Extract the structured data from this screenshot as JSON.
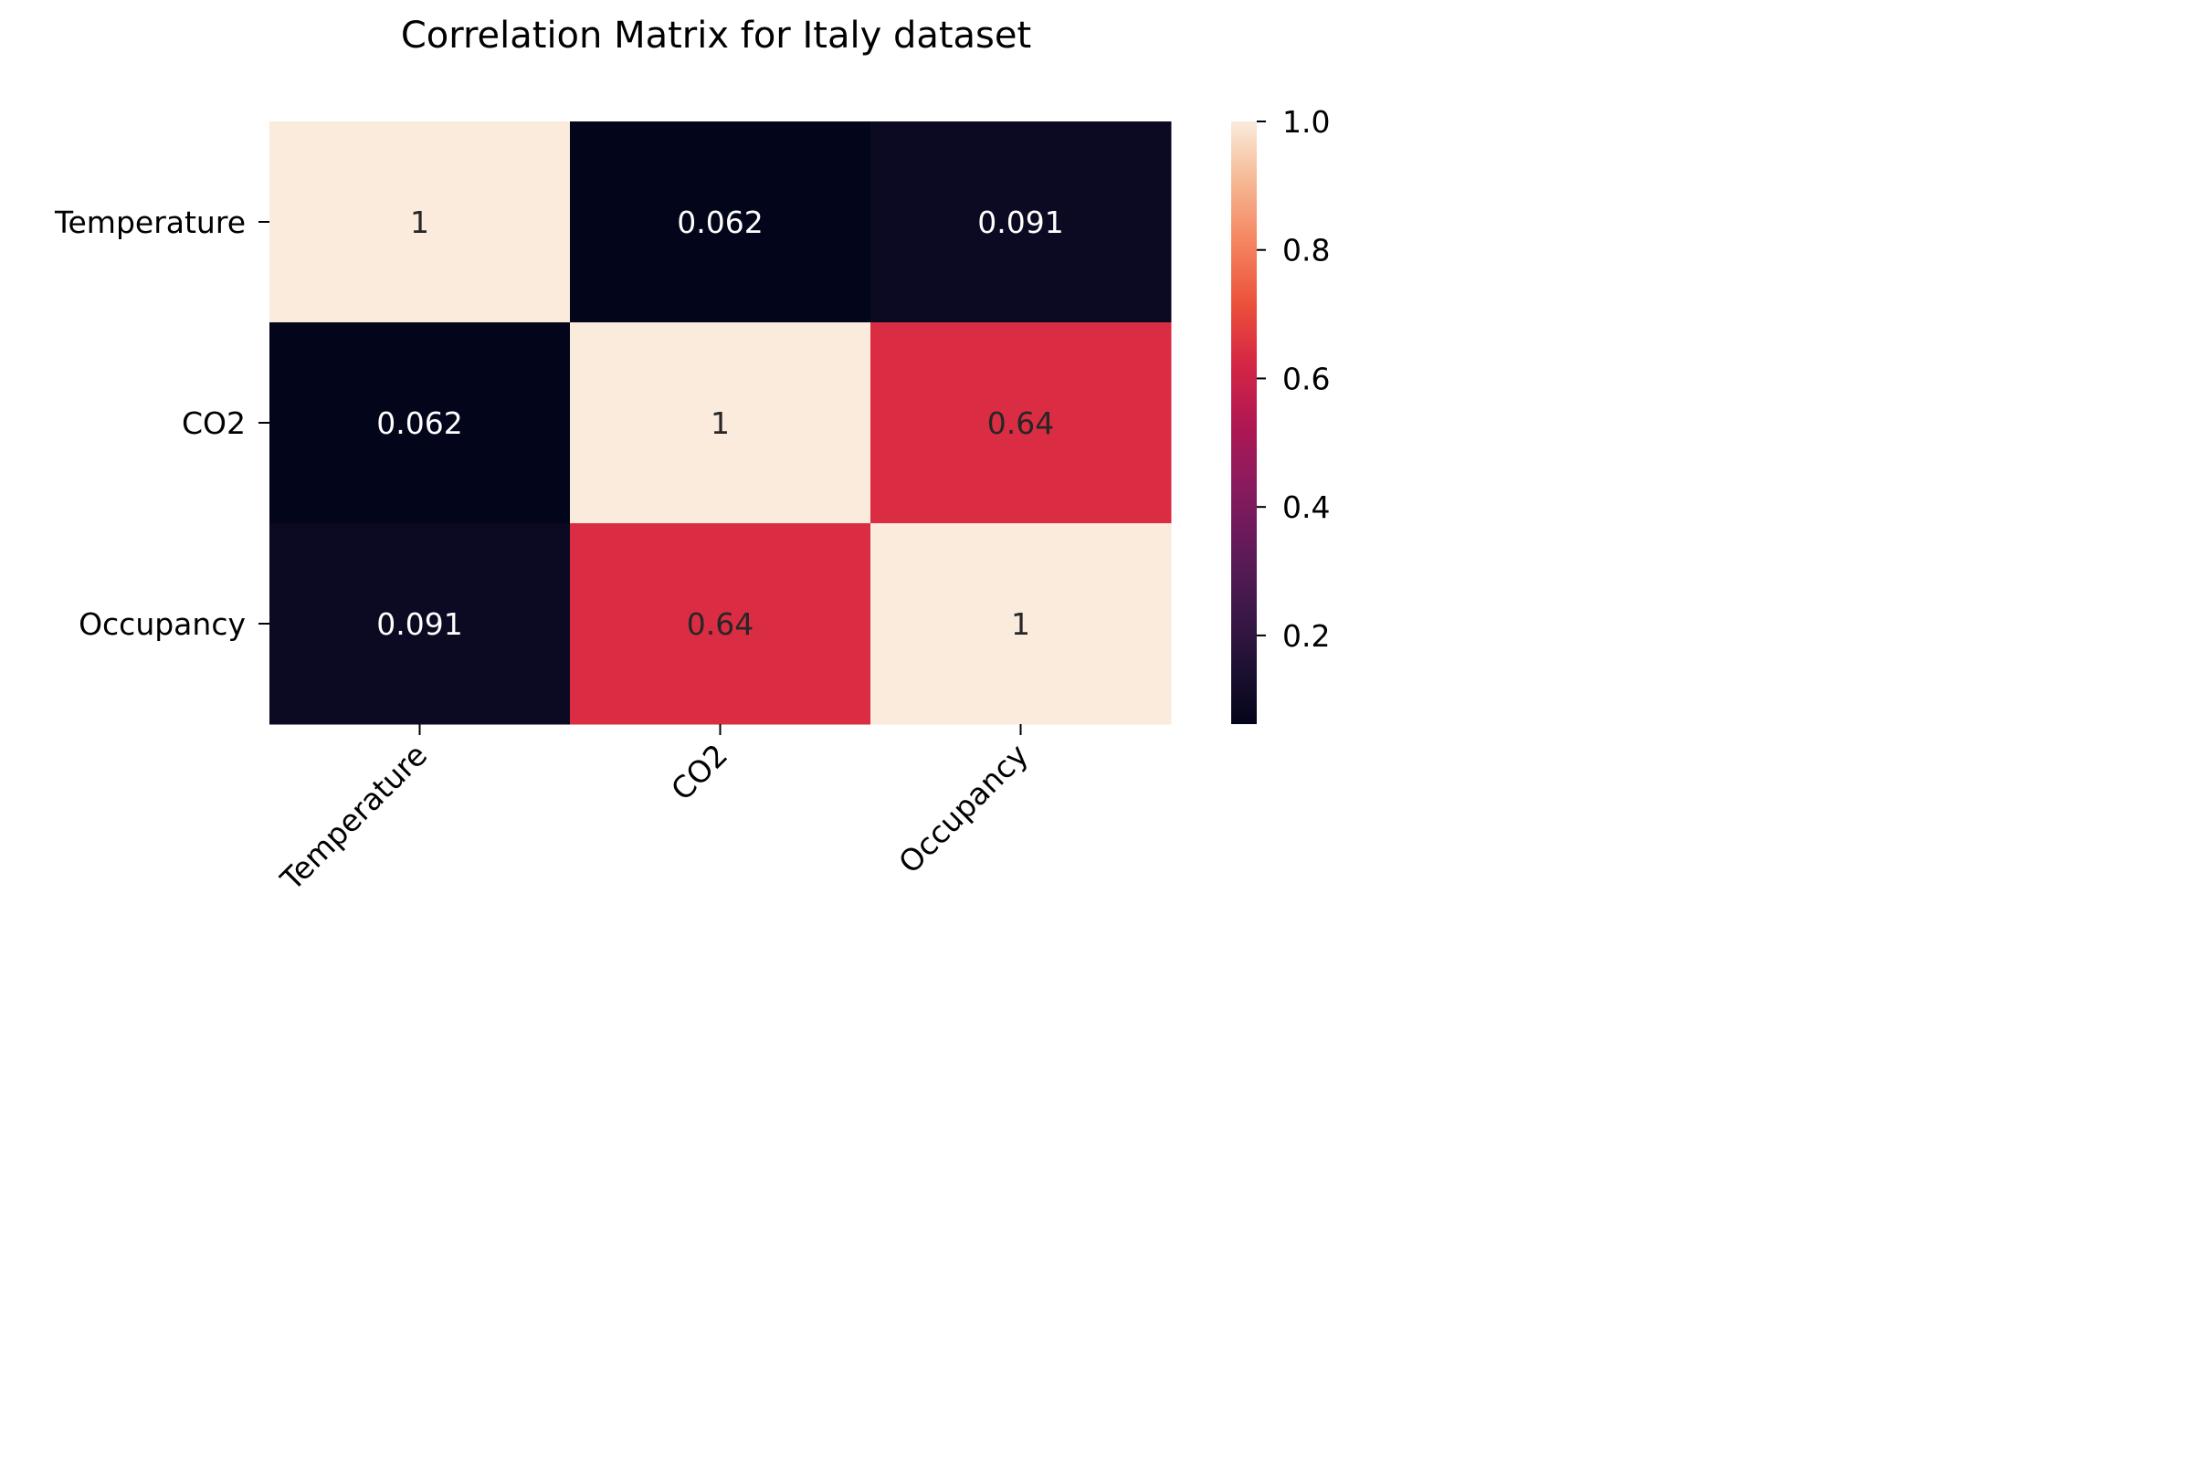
{
  "chart_data": {
    "type": "heatmap",
    "title": "Correlation Matrix for Italy dataset",
    "x_categories": [
      "Temperature",
      "CO2",
      "Occupancy"
    ],
    "y_categories": [
      "Temperature",
      "CO2",
      "Occupancy"
    ],
    "values": [
      [
        1,
        0.062,
        0.091
      ],
      [
        0.062,
        1,
        0.64
      ],
      [
        0.091,
        0.64,
        1
      ]
    ],
    "annotations": [
      [
        "1",
        "0.062",
        "0.091"
      ],
      [
        "0.062",
        "1",
        "0.64"
      ],
      [
        "0.091",
        "0.64",
        "1"
      ]
    ],
    "colorbar": {
      "range": [
        0.062,
        1.0
      ],
      "ticks": [
        0.2,
        0.4,
        0.6,
        0.8,
        1.0
      ],
      "tick_labels": [
        "0.2",
        "0.4",
        "0.6",
        "0.8",
        "1.0"
      ],
      "colormap": "rocket"
    }
  }
}
